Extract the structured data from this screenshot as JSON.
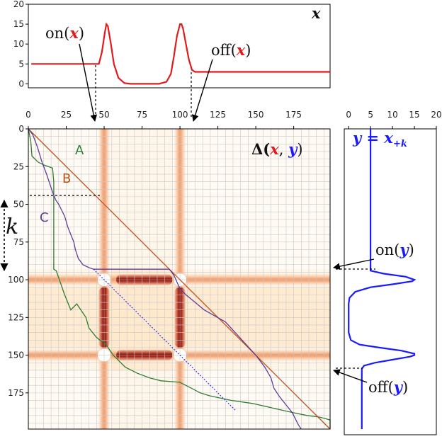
{
  "colors": {
    "x_series": "#e31a1c",
    "y_series": "#1a1aff",
    "path_A": "#2e7d32",
    "path_B": "#c0501a",
    "path_C": "#5e3c99",
    "heat_low": "#fff5e6",
    "heat_high": "#8b0000"
  },
  "labels": {
    "x_title": "𝒙",
    "y_title": "𝒚 = 𝒙₊ₖ",
    "delta_title": "𝚫(𝒙, 𝒚)",
    "delta_head": "𝚫(",
    "delta_x": "𝒙",
    "delta_comma": ", ",
    "delta_y": "𝒚",
    "delta_tail": ")",
    "y_title_eq": "𝒚 = 𝒙",
    "y_title_sub": "+k",
    "k_label": "k",
    "on_x": "on(",
    "off_x": "off(",
    "on_y": "on(",
    "off_y": "off(",
    "close_paren": ")",
    "x_sym": "𝒙",
    "y_sym": "𝒚",
    "path_A": "A",
    "path_B": "B",
    "path_C": "C"
  },
  "chart_data": [
    {
      "type": "line",
      "name": "x",
      "x": [
        0,
        44,
        45,
        47,
        49,
        50,
        51,
        53,
        55,
        58,
        62,
        66,
        70,
        85,
        90,
        93,
        95,
        97,
        99,
        100,
        101,
        103,
        105,
        107,
        109,
        110,
        199
      ],
      "y": [
        5,
        5,
        5,
        8,
        13,
        15,
        14.5,
        10,
        5,
        1.5,
        0.2,
        0,
        0,
        0,
        0.5,
        2.5,
        7,
        12,
        15,
        15,
        14,
        10,
        6,
        3.5,
        3,
        3,
        3
      ],
      "xlim": [
        -2,
        199
      ],
      "ylim": [
        -1,
        20
      ],
      "yticks": [
        0,
        5,
        10,
        15,
        20
      ]
    },
    {
      "type": "line",
      "name": "y",
      "y_index": [
        0,
        93,
        94,
        96,
        98,
        100,
        101,
        103,
        105,
        108,
        112,
        116,
        120,
        135,
        140,
        143,
        145,
        147,
        149,
        150,
        151,
        153,
        155,
        157,
        159,
        160,
        199
      ],
      "value": [
        5,
        5,
        5,
        8,
        13,
        15,
        14.5,
        10,
        5,
        1.5,
        0.2,
        0,
        0,
        0,
        0.5,
        2.5,
        7,
        12,
        15,
        15,
        14,
        10,
        6,
        3.5,
        3,
        3,
        3
      ],
      "xlim": [
        -1,
        20
      ],
      "xticks": [
        0,
        5,
        10,
        15,
        20
      ]
    },
    {
      "type": "heatmap",
      "xlim": [
        0,
        199
      ],
      "ylim": [
        0,
        199
      ],
      "xticks": [
        0,
        25,
        50,
        75,
        100,
        125,
        150,
        175
      ],
      "yticks": [
        0,
        25,
        50,
        75,
        100,
        125,
        150,
        175
      ],
      "x_bumps": [
        50,
        100
      ],
      "y_bumps": [
        100,
        150
      ],
      "paths": {
        "A": [
          [
            0,
            0
          ],
          [
            4,
            8
          ],
          [
            6,
            18
          ],
          [
            11,
            20
          ],
          [
            16,
            22
          ],
          [
            26,
            24
          ],
          [
            40,
            26
          ],
          [
            42,
            35
          ],
          [
            42,
            55
          ],
          [
            42,
            75
          ],
          [
            42,
            93
          ],
          [
            46,
            94
          ],
          [
            60,
            110
          ],
          [
            70,
            120
          ],
          [
            80,
            116
          ],
          [
            90,
            122
          ],
          [
            95,
            125
          ],
          [
            100,
            132
          ],
          [
            106,
            135
          ],
          [
            112,
            138
          ],
          [
            118,
            140
          ],
          [
            124,
            141
          ],
          [
            130,
            144
          ],
          [
            140,
            150
          ],
          [
            160,
            158
          ],
          [
            180,
            162
          ],
          [
            200,
            165
          ],
          [
            219,
            167
          ],
          [
            250,
            168
          ],
          [
            284,
            175
          ],
          [
            300,
            177
          ],
          [
            335,
            180
          ],
          [
            370,
            182
          ],
          [
            403,
            185
          ],
          [
            436,
            188
          ],
          [
            460,
            190
          ],
          [
            480,
            191
          ],
          [
            490,
            192
          ],
          [
            498,
            193
          ],
          [
            498,
            199
          ]
        ],
        "B": [
          [
            0,
            0
          ],
          [
            43,
            43
          ],
          [
            93,
            93
          ],
          [
            120,
            120
          ],
          [
            137,
            137
          ],
          [
            199,
            199
          ]
        ],
        "C": [
          [
            0,
            0
          ],
          [
            3,
            4
          ],
          [
            6,
            12
          ],
          [
            9,
            22
          ],
          [
            12,
            30
          ],
          [
            16,
            42
          ],
          [
            18,
            47
          ],
          [
            20,
            50
          ],
          [
            24,
            58
          ],
          [
            26,
            65
          ],
          [
            28,
            70
          ],
          [
            30,
            75
          ],
          [
            31,
            80
          ],
          [
            33,
            86
          ],
          [
            36,
            90
          ],
          [
            40,
            92
          ],
          [
            43,
            93
          ],
          [
            93,
            93
          ],
          [
            96,
            97
          ],
          [
            100,
            106
          ],
          [
            104,
            110
          ],
          [
            110,
            115
          ],
          [
            116,
            120
          ],
          [
            130,
            128
          ],
          [
            150,
            150
          ],
          [
            156,
            158
          ],
          [
            160,
            165
          ],
          [
            162,
            172
          ],
          [
            166,
            178
          ],
          [
            170,
            183
          ],
          [
            174,
            188
          ],
          [
            176,
            192
          ],
          [
            178,
            196
          ],
          [
            180,
            199
          ]
        ]
      }
    }
  ]
}
